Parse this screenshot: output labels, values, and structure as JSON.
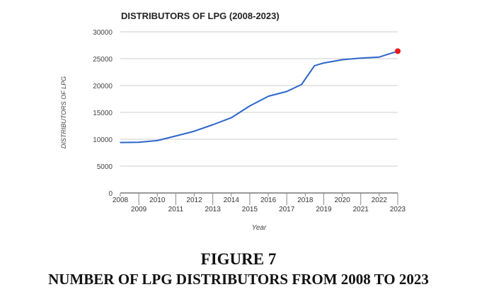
{
  "caption": {
    "figure_label": "FIGURE 7",
    "figure_title": "NUMBER OF LPG DISTRIBUTORS FROM 2008 TO 2023"
  },
  "chart_data": {
    "type": "line",
    "title": "DISTRIBUTORS OF LPG (2008-2023)",
    "xlabel": "Year",
    "ylabel": "DISTRIBUTORS OF LPG",
    "xlim": [
      2008,
      2023
    ],
    "ylim": [
      0,
      30000
    ],
    "x_ticks": [
      "2008",
      "2009",
      "2010",
      "2011",
      "2012",
      "2013",
      "2014",
      "2015",
      "2016",
      "2017",
      "2018",
      "2019",
      "2020",
      "2021",
      "2022",
      "2023"
    ],
    "y_ticks": [
      0,
      5000,
      10000,
      15000,
      20000,
      25000,
      30000
    ],
    "grid": "horizontal",
    "legend": "none",
    "series": [
      {
        "color": "#2a66c9",
        "highlight_color": "#e8191c",
        "points": [
          [
            2008,
            9400
          ],
          [
            2009,
            9450
          ],
          [
            2010,
            9750
          ],
          [
            2011,
            10600
          ],
          [
            2012,
            11500
          ],
          [
            2013,
            12700
          ],
          [
            2014,
            14000
          ],
          [
            2015,
            16200
          ],
          [
            2016,
            18000
          ],
          [
            2017,
            18900
          ],
          [
            2017.8,
            20200
          ],
          [
            2018.5,
            23700
          ],
          [
            2019,
            24200
          ],
          [
            2020,
            24800
          ],
          [
            2021,
            25100
          ],
          [
            2022,
            25300
          ],
          [
            2023,
            26400
          ]
        ]
      }
    ]
  }
}
